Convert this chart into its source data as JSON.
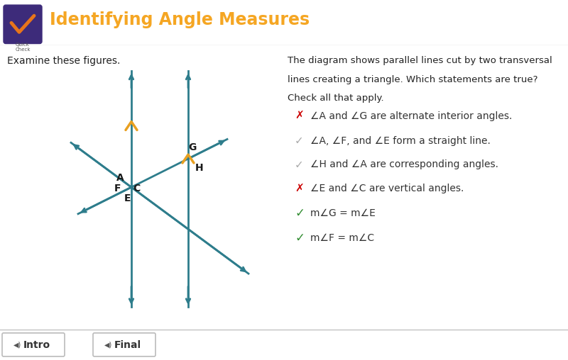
{
  "title": "Identifying Angle Measures",
  "title_color": "#F5A623",
  "header_bg": "#F5F5F5",
  "body_bg": "#FFFFFF",
  "subtitle_left": "Examine these figures.",
  "desc_line1": "The diagram shows parallel lines cut by two transversal",
  "desc_line2": "lines creating a triangle. Which statements are true?",
  "desc_line3": "Check all that apply.",
  "statements": [
    {
      "icon": "x",
      "text": "∠A and ∠G are alternate interior angles."
    },
    {
      "icon": "check_gray",
      "text": "∠A, ∠F, and ∠E form a straight line."
    },
    {
      "icon": "check_gray",
      "text": "∠H and ∠A are corresponding angles."
    },
    {
      "icon": "x",
      "text": "∠E and ∠C are vertical angles."
    },
    {
      "icon": "check_green",
      "text": "m∠G = m∠E"
    },
    {
      "icon": "check_green",
      "text": "m∠F = m∠C"
    }
  ],
  "line_color": "#2E7D8C",
  "tick_color": "#E8A020",
  "icon_bg": "#3D2B7A",
  "icon_check_color": "#E8751A"
}
